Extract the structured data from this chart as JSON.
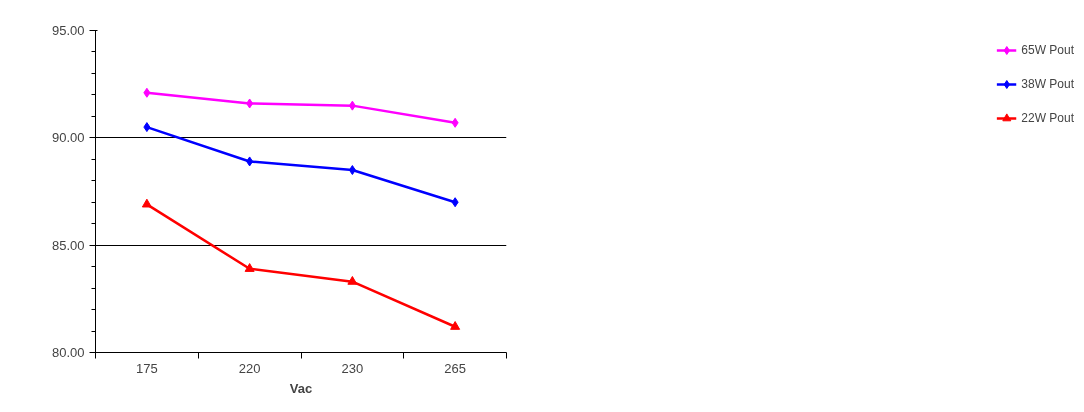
{
  "chart_data": {
    "type": "line",
    "xlabel": "Vac",
    "categories": [
      "175",
      "220",
      "230",
      "265"
    ],
    "ylim": [
      80,
      95
    ],
    "yticks": [
      {
        "value": 80,
        "label": "80.00"
      },
      {
        "value": 85,
        "label": "85.00"
      },
      {
        "value": 90,
        "label": "90.00"
      },
      {
        "value": 95,
        "label": "95.00"
      }
    ],
    "grid": "y",
    "legend": "right",
    "series": [
      {
        "name": "65W Pout",
        "color": "#ff00ff",
        "marker": "diamond",
        "values": [
          92.1,
          91.6,
          91.5,
          90.7
        ]
      },
      {
        "name": "38W Pout",
        "color": "#0000ff",
        "marker": "diamond",
        "values": [
          90.5,
          88.9,
          88.5,
          87.0
        ]
      },
      {
        "name": "22W Pout",
        "color": "#ff0000",
        "marker": "triangle",
        "values": [
          86.9,
          83.9,
          83.3,
          81.2
        ]
      }
    ]
  }
}
